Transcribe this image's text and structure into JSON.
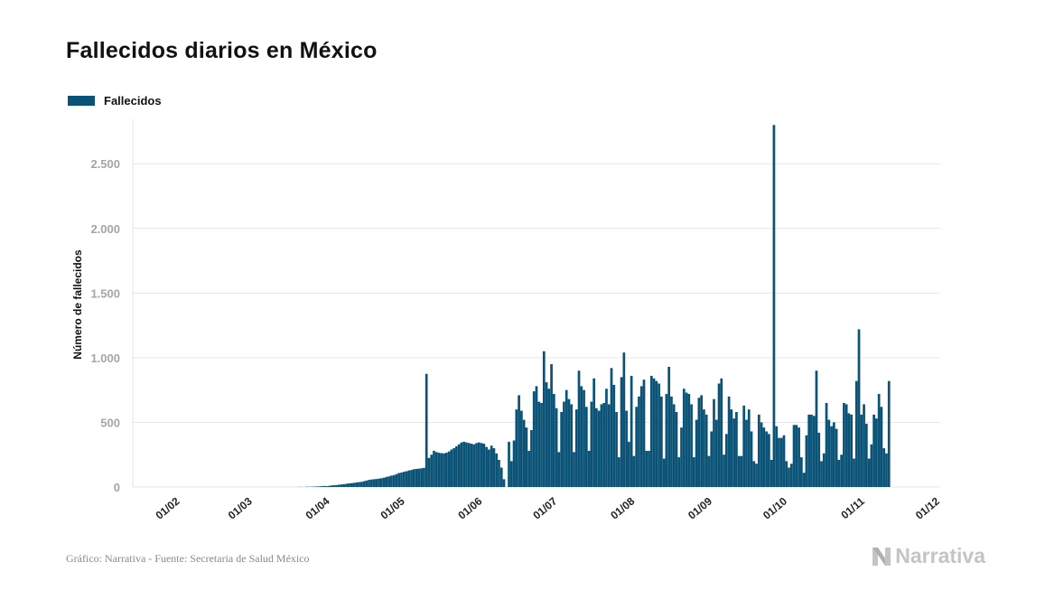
{
  "title": "Fallecidos diarios en México",
  "legend": {
    "label": "Fallecidos"
  },
  "source": "Gráfico: Narrativa - Fuente: Secretaria de Salud México",
  "brand": {
    "name": "Narrativa",
    "icon": "narrativa-logo-icon"
  },
  "colors": {
    "bar": "#0a5276",
    "grid": "#e6e6e6",
    "tick_text": "#a5a5a5",
    "axis_label": "#111111"
  },
  "chart_data": {
    "type": "bar",
    "ylabel": "Número de fallecidos",
    "xlabel": "",
    "ylim": [
      0,
      2900
    ],
    "yticks": [
      0,
      500,
      1000,
      1500,
      2000,
      2500
    ],
    "ytick_labels": [
      "0",
      "500",
      "1.000",
      "1.500",
      "2.000",
      "2.500"
    ],
    "x_start": "2020-01-13",
    "x_end": "2020-12-01",
    "xticks": [
      "2020-02-01",
      "2020-03-01",
      "2020-04-01",
      "2020-05-01",
      "2020-06-01",
      "2020-07-01",
      "2020-08-01",
      "2020-09-01",
      "2020-10-01",
      "2020-11-01",
      "2020-12-01"
    ],
    "xtick_labels": [
      "01/02",
      "01/03",
      "01/04",
      "01/05",
      "01/06",
      "01/07",
      "01/08",
      "01/09",
      "01/10",
      "01/11",
      "01/12"
    ],
    "grid": true,
    "legend_position": "top-left",
    "series": [
      {
        "name": "Fallecidos",
        "start_date": "2020-03-19",
        "values": [
          1,
          1,
          0,
          2,
          2,
          2,
          3,
          4,
          5,
          6,
          8,
          7,
          9,
          12,
          14,
          15,
          18,
          20,
          22,
          25,
          28,
          30,
          32,
          35,
          38,
          40,
          45,
          50,
          55,
          58,
          60,
          62,
          65,
          68,
          72,
          78,
          82,
          88,
          92,
          100,
          108,
          112,
          118,
          122,
          128,
          132,
          138,
          140,
          142,
          145,
          148,
          875,
          225,
          250,
          280,
          270,
          265,
          262,
          260,
          265,
          275,
          290,
          300,
          315,
          330,
          345,
          350,
          345,
          340,
          335,
          330,
          340,
          345,
          340,
          335,
          310,
          290,
          320,
          300,
          260,
          210,
          150,
          60,
          0,
          350,
          200,
          360,
          600,
          710,
          590,
          520,
          460,
          280,
          440,
          740,
          780,
          660,
          650,
          1050,
          810,
          760,
          950,
          720,
          610,
          270,
          580,
          660,
          750,
          680,
          640,
          270,
          600,
          900,
          780,
          750,
          620,
          280,
          660,
          840,
          610,
          590,
          640,
          650,
          760,
          640,
          920,
          790,
          580,
          230,
          850,
          1040,
          590,
          350,
          860,
          240,
          620,
          700,
          780,
          830,
          280,
          280,
          860,
          840,
          820,
          800,
          700,
          220,
          720,
          930,
          700,
          640,
          580,
          230,
          460,
          760,
          730,
          720,
          640,
          230,
          520,
          690,
          710,
          600,
          560,
          240,
          430,
          680,
          520,
          800,
          840,
          250,
          410,
          700,
          600,
          530,
          580,
          240,
          240,
          630,
          520,
          600,
          430,
          200,
          180,
          560,
          500,
          460,
          430,
          410,
          210,
          2800,
          470,
          380,
          380,
          400,
          200,
          150,
          180,
          480,
          480,
          460,
          230,
          110,
          400,
          560,
          560,
          550,
          900,
          420,
          200,
          260,
          650,
          520,
          470,
          500,
          450,
          210,
          250,
          650,
          640,
          570,
          560,
          220,
          820,
          1220,
          560,
          640,
          490,
          220,
          330,
          560,
          530,
          720,
          620,
          300,
          260,
          820
        ]
      }
    ]
  }
}
